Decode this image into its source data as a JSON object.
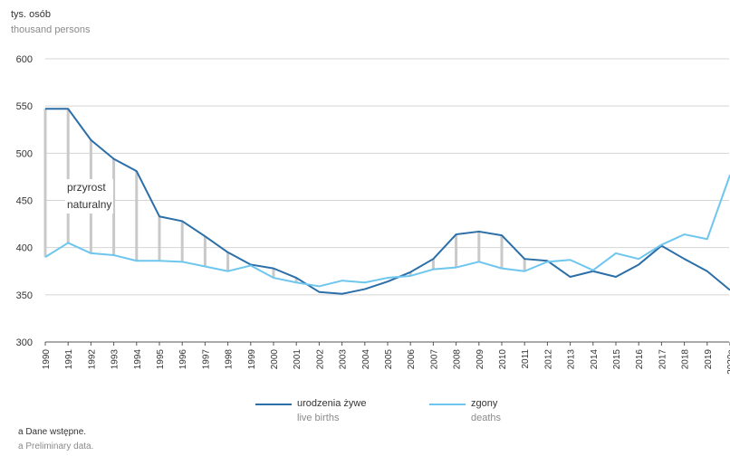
{
  "unit_label": {
    "pl": "tys. osób",
    "en": "thousand persons"
  },
  "annotation": {
    "line1": "przyrost",
    "line2": "naturalny"
  },
  "legend": {
    "births": {
      "pl": "urodzenia żywe",
      "en": "live births",
      "color": "#2b6ea8"
    },
    "deaths": {
      "pl": "zgony",
      "en": "deaths",
      "color": "#6ec6ee"
    }
  },
  "footnote": {
    "pl": "a Dane wstępne.",
    "en": "a Preliminary data."
  },
  "chart_data": {
    "type": "line",
    "categories": [
      "1990",
      "1991",
      "1992",
      "1993",
      "1994",
      "1995",
      "1996",
      "1997",
      "1998",
      "1999",
      "2000",
      "2001",
      "2002",
      "2003",
      "2004",
      "2005",
      "2006",
      "2007",
      "2008",
      "2009",
      "2010",
      "2011",
      "2012",
      "2013",
      "2014",
      "2015",
      "2016",
      "2017",
      "2018",
      "2019",
      "2020a"
    ],
    "series": [
      {
        "name": "urodzenia żywe",
        "color": "#2b6ea8",
        "values": [
          547,
          547,
          514,
          494,
          481,
          433,
          428,
          412,
          395,
          382,
          378,
          368,
          353,
          351,
          356,
          364,
          374,
          388,
          414,
          417,
          413,
          388,
          386,
          369,
          375,
          369,
          382,
          402,
          388,
          375,
          355
        ]
      },
      {
        "name": "zgony",
        "color": "#6ec6ee",
        "values": [
          390,
          405,
          394,
          392,
          386,
          386,
          385,
          380,
          375,
          381,
          368,
          363,
          359,
          365,
          363,
          368,
          370,
          377,
          379,
          385,
          378,
          375,
          385,
          387,
          376,
          394,
          388,
          403,
          414,
          409,
          477
        ]
      }
    ],
    "ylim": [
      300,
      600
    ],
    "yticks": [
      300,
      350,
      400,
      450,
      500,
      550,
      600
    ],
    "grid": true,
    "legend_position": "bottom",
    "difference_bars_color": "#c9c9c9"
  }
}
